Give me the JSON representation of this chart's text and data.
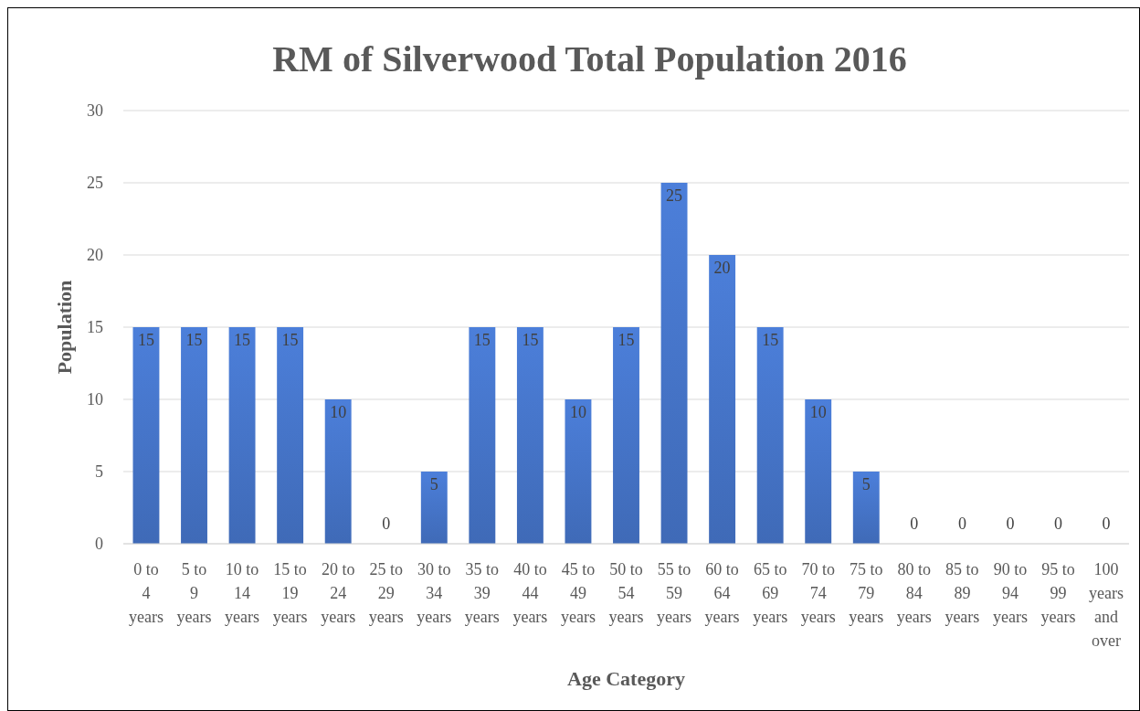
{
  "chart_data": {
    "type": "bar",
    "title": "RM of Silverwood Total Population 2016",
    "xlabel": "Age Category",
    "ylabel": "Population",
    "categories": [
      "0 to 4 years",
      "5 to 9 years",
      "10 to 14 years",
      "15 to 19 years",
      "20 to 24 years",
      "25 to 29 years",
      "30 to 34 years",
      "35 to 39 years",
      "40 to 44 years",
      "45 to 49 years",
      "50 to 54 years",
      "55 to 59 years",
      "60 to 64 years",
      "65 to 69 years",
      "70 to 74 years",
      "75 to 79 years",
      "80 to 84 years",
      "85 to 89 years",
      "90 to 94 years",
      "95 to 99 years",
      "100 years and over"
    ],
    "values": [
      15,
      15,
      15,
      15,
      10,
      0,
      5,
      15,
      15,
      10,
      15,
      25,
      20,
      15,
      10,
      5,
      0,
      0,
      0,
      0,
      0
    ],
    "color": "#4472c4",
    "ylim": [
      0,
      30
    ],
    "yticks": [
      0,
      5,
      10,
      15,
      20,
      25,
      30
    ],
    "grid": "y",
    "data_labels": true
  }
}
